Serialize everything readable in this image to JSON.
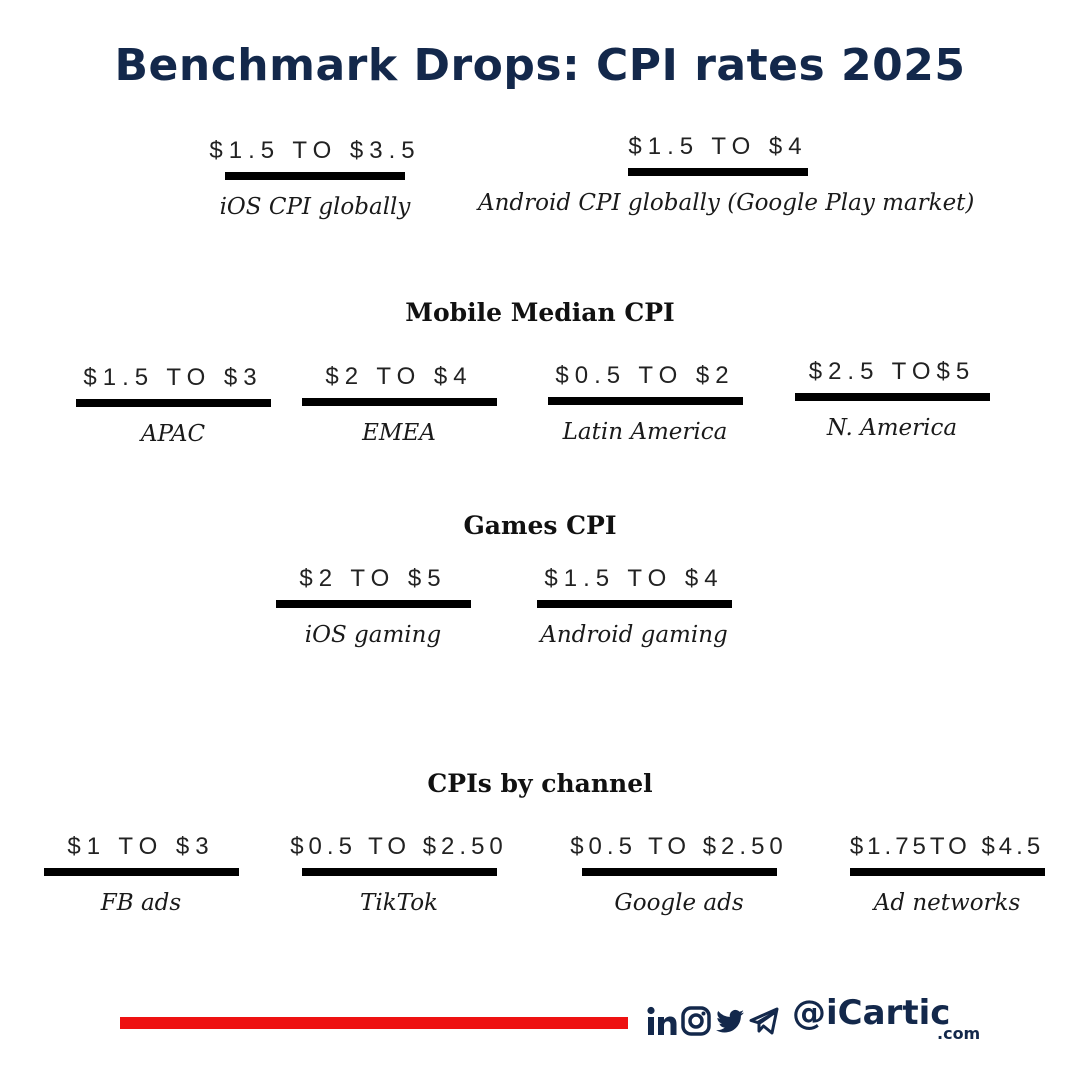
{
  "title": "Benchmark Drops: CPI rates 2025",
  "global": [
    {
      "value": "$1.5 TO $3.5",
      "label": "iOS CPI globally"
    },
    {
      "value": "$1.5 TO $4",
      "label": "Android CPI globally (Google Play market)"
    }
  ],
  "mobile_median": {
    "heading": "Mobile Median CPI",
    "items": [
      {
        "value": "$1.5 TO $3",
        "label": "APAC"
      },
      {
        "value": "$2 TO $4",
        "label": "EMEA"
      },
      {
        "value": "$0.5 TO $2",
        "label": "Latin America"
      },
      {
        "value": "$2.5 TO$5",
        "label": "N. America"
      }
    ]
  },
  "games": {
    "heading": "Games CPI",
    "items": [
      {
        "value": "$2 TO $5",
        "label": "iOS gaming"
      },
      {
        "value": "$1.5 TO $4",
        "label": "Android gaming"
      }
    ]
  },
  "channels": {
    "heading": "CPIs by channel",
    "items": [
      {
        "value": "$1 TO $3",
        "label": "FB ads"
      },
      {
        "value": "$0.5 TO $2.50",
        "label": "TikTok"
      },
      {
        "value": "$0.5 TO $2.50",
        "label": "Google ads"
      },
      {
        "value": "$1.75TO $4.5",
        "label": "Ad networks"
      }
    ]
  },
  "footer": {
    "handle": "@iCartic",
    "domain": ".com",
    "icons": [
      "linkedin-icon",
      "instagram-icon",
      "twitter-icon",
      "telegram-icon"
    ],
    "accent_color": "#ee1111",
    "brand_color": "#13284b"
  }
}
